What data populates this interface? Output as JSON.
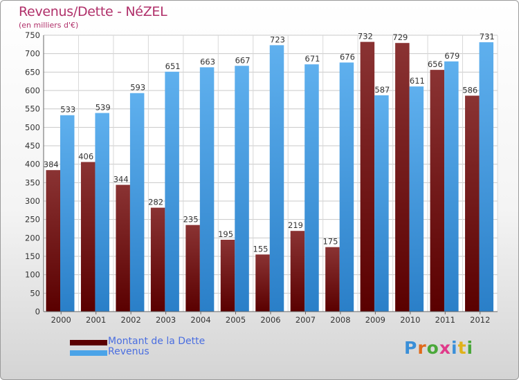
{
  "chart_data": {
    "type": "bar",
    "title": "Revenus/Dette - NéZEL",
    "subtitle": "(en milliers d'€)",
    "categories": [
      "2000",
      "2001",
      "2002",
      "2003",
      "2004",
      "2005",
      "2006",
      "2007",
      "2008",
      "2009",
      "2010",
      "2011",
      "2012"
    ],
    "series": [
      {
        "name": "Montant de la Dette",
        "color": "#7a1a1a",
        "values": [
          384,
          406,
          344,
          282,
          235,
          195,
          155,
          219,
          175,
          732,
          729,
          656,
          586
        ]
      },
      {
        "name": "Revenus",
        "color": "#4aa3e8",
        "values": [
          533,
          539,
          593,
          651,
          663,
          667,
          723,
          671,
          676,
          587,
          611,
          679,
          731
        ]
      }
    ],
    "ylim": [
      0,
      750
    ],
    "yticks": [
      0,
      50,
      100,
      150,
      200,
      250,
      300,
      350,
      400,
      450,
      500,
      550,
      600,
      650,
      700,
      750
    ],
    "grid": true,
    "legend": "bottom-left"
  },
  "logo": {
    "letters": [
      {
        "ch": "P",
        "color": "#3a8fd8"
      },
      {
        "ch": "r",
        "color": "#e06a1a"
      },
      {
        "ch": "o",
        "color": "#4aa83a"
      },
      {
        "ch": "x",
        "color": "#e03a8a"
      },
      {
        "ch": "i",
        "color": "#3a8fd8"
      },
      {
        "ch": "t",
        "color": "#e0b21a"
      },
      {
        "ch": "i",
        "color": "#4aa83a"
      }
    ]
  }
}
